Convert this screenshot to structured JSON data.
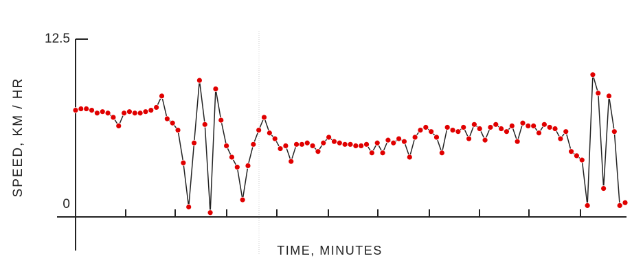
{
  "chart_data": {
    "type": "line",
    "ylabel": "SPEED, KM / HR",
    "xlabel": "TIME, MINUTES",
    "ylim": [
      0,
      12.5
    ],
    "yticks": [
      0,
      12.5
    ],
    "color": "#e00000",
    "line_color": "#222222",
    "values": [
      7.5,
      7.6,
      7.6,
      7.5,
      7.3,
      7.4,
      7.3,
      7.0,
      6.4,
      7.3,
      7.4,
      7.3,
      7.3,
      7.4,
      7.5,
      7.7,
      8.5,
      6.9,
      6.6,
      6.1,
      3.8,
      0.7,
      5.2,
      9.6,
      6.5,
      0.3,
      9.0,
      6.8,
      5.0,
      4.2,
      3.5,
      1.2,
      3.6,
      5.1,
      6.1,
      7.0,
      5.9,
      5.5,
      4.8,
      5.0,
      3.9,
      5.1,
      5.1,
      5.2,
      5.0,
      4.6,
      5.2,
      5.6,
      5.3,
      5.2,
      5.1,
      5.1,
      5.0,
      5.0,
      5.1,
      4.5,
      5.2,
      4.5,
      5.4,
      5.2,
      5.5,
      5.3,
      4.2,
      5.6,
      6.1,
      6.3,
      6.0,
      5.6,
      4.5,
      6.3,
      6.1,
      6.0,
      6.3,
      5.5,
      6.5,
      6.2,
      5.4,
      6.3,
      6.5,
      6.2,
      6.0,
      6.4,
      5.3,
      6.6,
      6.4,
      6.4,
      5.9,
      6.5,
      6.3,
      6.2,
      5.5,
      6.0,
      4.6,
      4.3,
      4.0,
      0.8,
      10.0,
      8.7,
      2.0,
      8.5,
      6.0,
      0.8,
      1.0
    ]
  }
}
